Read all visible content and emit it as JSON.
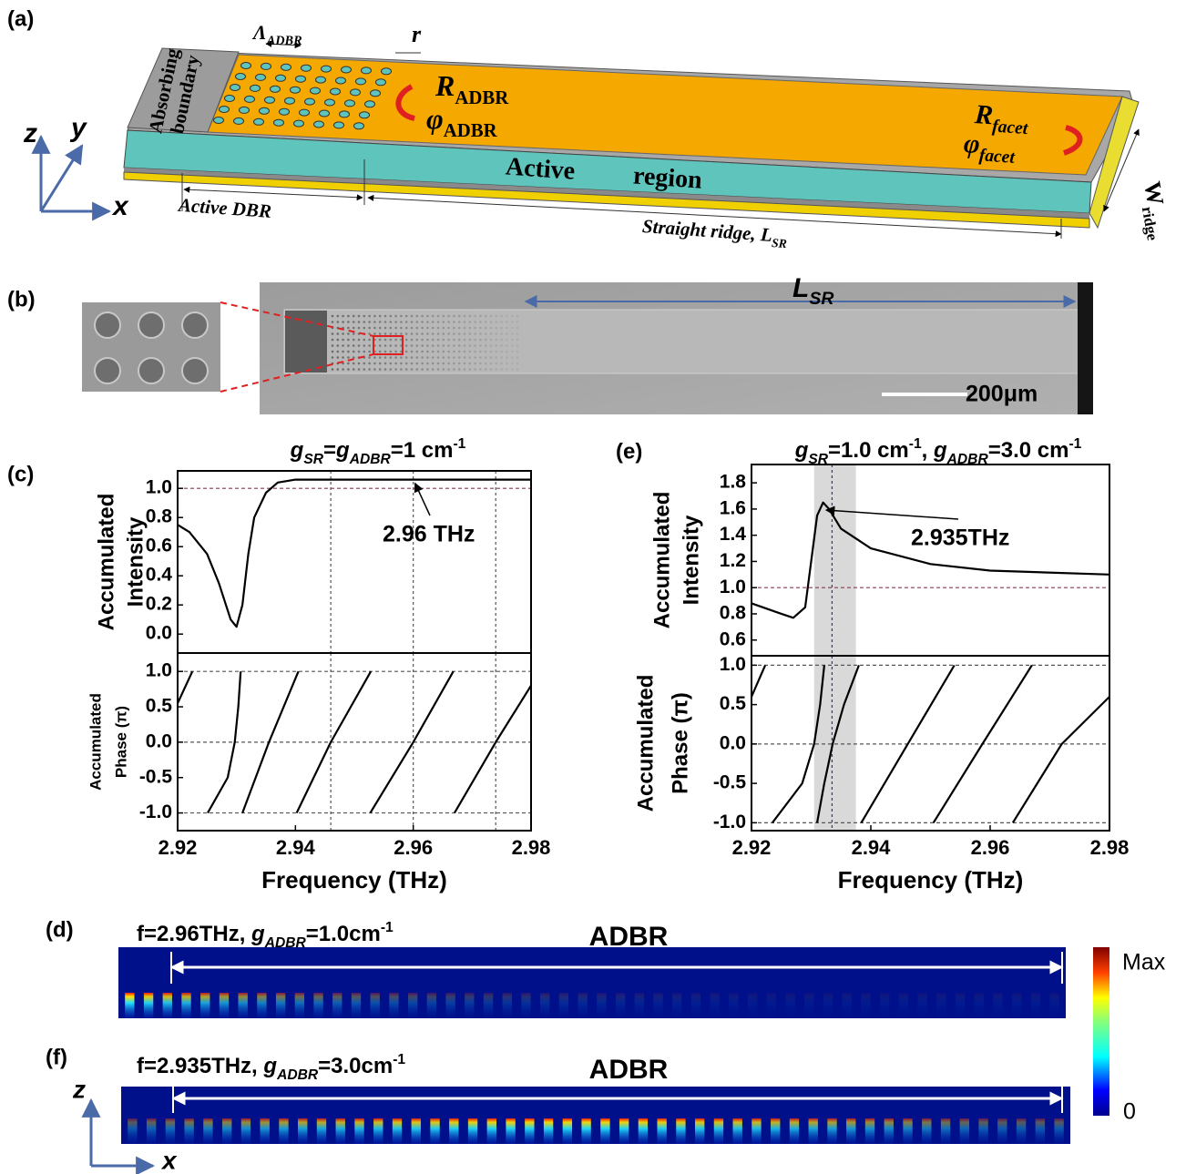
{
  "panel_labels": [
    "(a)",
    "(b)",
    "(c)",
    "(d)",
    "(e)",
    "(f)"
  ],
  "panel_a": {
    "absorbing_boundary": [
      "Absorbing",
      "boundary"
    ],
    "period": [
      {
        "text": "Λ",
        "italic": true
      },
      {
        "text": "ADBR",
        "sub": true,
        "italic": true
      }
    ],
    "radius": [
      {
        "text": "r",
        "italic": true
      }
    ],
    "r_adbr": [
      {
        "text": "R",
        "italic": true
      },
      {
        "text": "ADBR",
        "sub": true
      }
    ],
    "phi_adbr": [
      {
        "text": "φ",
        "italic": true
      },
      {
        "text": "ADBR",
        "sub": true
      }
    ],
    "r_facet": [
      {
        "text": "R",
        "italic": true
      },
      {
        "text": "facet",
        "sub": true,
        "italic": true
      }
    ],
    "phi_facet": [
      {
        "text": "φ",
        "italic": true
      },
      {
        "text": "facet",
        "sub": true,
        "italic": true
      }
    ],
    "active_region": [
      "Active",
      "region"
    ],
    "active_dbr": "Active DBR",
    "straight_ridge": [
      {
        "text": "Straight ridge, ",
        "italic": true
      },
      {
        "text": "L",
        "italic": true
      },
      {
        "text": "SR",
        "sub": true,
        "italic": true
      }
    ],
    "w_ridge": [
      {
        "text": "W"
      },
      {
        "text": "ridge",
        "sub": true
      }
    ],
    "axes": [
      "z",
      "y",
      "x"
    ]
  },
  "panel_b": {
    "length": [
      {
        "text": "L",
        "italic": true
      },
      {
        "text": "SR",
        "sub": true,
        "italic": true
      }
    ],
    "scale_bar": "200μm"
  },
  "chart_data": [
    {
      "type": "line",
      "title": [
        {
          "text": "g",
          "italic": true
        },
        {
          "text": "SR",
          "sub": true,
          "italic": true
        },
        {
          "text": "="
        },
        {
          "text": "g",
          "italic": true
        },
        {
          "text": "ADBR",
          "sub": true,
          "italic": true
        },
        {
          "text": "=1 cm"
        },
        {
          "text": "-1",
          "sup": true
        }
      ],
      "ylabel": [
        "Accumulated",
        "Intensity"
      ],
      "xlim": [
        2.92,
        2.98
      ],
      "ylim": [
        -0.13,
        1.12
      ],
      "yticks": [
        {
          "value": 0,
          "label": "0.0"
        },
        0.2,
        0.4,
        0.6,
        0.8,
        {
          "value": 1,
          "label": "1.0"
        }
      ],
      "series": [
        {
          "color": "#000000",
          "x": [
            2.92,
            2.922,
            2.925,
            2.927,
            2.929,
            2.93,
            2.931,
            2.932,
            2.933,
            2.935,
            2.937,
            2.94,
            2.95,
            2.98
          ],
          "values": [
            0.75,
            0.7,
            0.55,
            0.35,
            0.1,
            0.05,
            0.2,
            0.55,
            0.8,
            0.97,
            1.04,
            1.06,
            1.06,
            1.06
          ]
        }
      ],
      "hlines": [
        1.0
      ],
      "hline_color": "#8b3a4a",
      "vlines": [
        2.946,
        2.96,
        2.974
      ],
      "vline_color": "#555555",
      "annotation": {
        "text": "2.96 THz",
        "x": 2.96,
        "y": 1.06
      }
    },
    {
      "type": "line",
      "ylabel": [
        "Accumulated",
        "Phase (π)"
      ],
      "xlabel": "Frequency (THz)",
      "xlim": [
        2.92,
        2.98
      ],
      "ylim": [
        -1.25,
        1.26
      ],
      "xticks": [
        2.92,
        2.94,
        2.96,
        2.98
      ],
      "yticks": [
        {
          "value": -1,
          "label": "-1.0"
        },
        -0.5,
        {
          "value": 0,
          "label": "0.0"
        },
        0.5,
        {
          "value": 1,
          "label": "1.0"
        }
      ],
      "series": [
        {
          "color": "#000000",
          "x": [
            2.92,
            2.9225
          ],
          "values": [
            0.55,
            1.0
          ]
        },
        {
          "color": "#000000",
          "x": [
            2.9251,
            2.9285,
            2.9297,
            2.9303,
            2.9307
          ],
          "values": [
            -1.0,
            -0.5,
            0.0,
            0.5,
            1.0
          ]
        },
        {
          "color": "#000000",
          "x": [
            2.931,
            2.9355,
            2.9405
          ],
          "values": [
            -1.0,
            0.0,
            1.0
          ]
        },
        {
          "color": "#000000",
          "x": [
            2.9402,
            2.946,
            2.9528
          ],
          "values": [
            -1.0,
            0.0,
            1.0
          ]
        },
        {
          "color": "#000000",
          "x": [
            2.9527,
            2.96,
            2.9668
          ],
          "values": [
            -1.0,
            0.0,
            1.0
          ]
        },
        {
          "color": "#000000",
          "x": [
            2.967,
            2.974,
            2.98
          ],
          "values": [
            -1.0,
            0.0,
            0.8
          ]
        }
      ],
      "hlines": [
        -1.0,
        0.0,
        1.0
      ],
      "hline_color": "#555555",
      "vlines": [
        2.946,
        2.96,
        2.974
      ],
      "vline_color": "#555555"
    },
    {
      "type": "line",
      "title": [
        {
          "text": "g",
          "italic": true
        },
        {
          "text": "SR",
          "sub": true,
          "italic": true
        },
        {
          "text": "=1.0 cm"
        },
        {
          "text": "-1",
          "sup": true
        },
        {
          "text": ", "
        },
        {
          "text": "g",
          "italic": true
        },
        {
          "text": "ADBR",
          "sub": true,
          "italic": true
        },
        {
          "text": "=3.0 cm"
        },
        {
          "text": "-1",
          "sup": true
        }
      ],
      "ylabel": [
        "Accumulated",
        "Intensity"
      ],
      "xlim": [
        2.92,
        2.98
      ],
      "ylim": [
        0.48,
        1.94
      ],
      "yticks": [
        0.6,
        0.8,
        {
          "value": 1,
          "label": "1.0"
        },
        1.2,
        1.4,
        1.6,
        1.8
      ],
      "series": [
        {
          "color": "#000000",
          "x": [
            2.92,
            2.925,
            2.927,
            2.929,
            2.93,
            2.931,
            2.932,
            2.933,
            2.935,
            2.94,
            2.95,
            2.96,
            2.98
          ],
          "values": [
            0.88,
            0.8,
            0.77,
            0.85,
            1.2,
            1.55,
            1.65,
            1.6,
            1.45,
            1.3,
            1.18,
            1.13,
            1.1
          ]
        }
      ],
      "hlines": [
        1.0
      ],
      "hline_color": "#8b3a4a",
      "band": [
        2.9305,
        2.9375
      ],
      "band_color": "#d9d9d9",
      "vlines": [
        2.9335
      ],
      "vline_color": "#2a3a9a",
      "annotation": {
        "text": "2.935THz",
        "x": 2.9322,
        "y": 1.62
      }
    },
    {
      "type": "line",
      "ylabel": [
        "Accumulated",
        "Phase (π)"
      ],
      "xlabel": "Frequency (THz)",
      "xlim": [
        2.92,
        2.98
      ],
      "ylim": [
        -1.1,
        1.12
      ],
      "xticks": [
        2.92,
        2.94,
        2.96,
        2.98
      ],
      "yticks": [
        {
          "value": -1,
          "label": "-1.0"
        },
        -0.5,
        {
          "value": 0,
          "label": "0.0"
        },
        0.5,
        {
          "value": 1,
          "label": "1.0"
        }
      ],
      "series": [
        {
          "color": "#000000",
          "x": [
            2.92,
            2.9223
          ],
          "values": [
            0.6,
            1.0
          ]
        },
        {
          "color": "#000000",
          "x": [
            2.9235,
            2.9285,
            2.9305,
            2.9315,
            2.9322
          ],
          "values": [
            -1.0,
            -0.5,
            0.0,
            0.5,
            1.0
          ]
        },
        {
          "color": "#000000",
          "x": [
            2.931,
            2.9322,
            2.9336,
            2.9355,
            2.938
          ],
          "values": [
            -1.0,
            -0.5,
            0.0,
            0.5,
            1.0
          ]
        },
        {
          "color": "#000000",
          "x": [
            2.9384,
            2.9462,
            2.954
          ],
          "values": [
            -1.0,
            0.0,
            1.0
          ]
        },
        {
          "color": "#000000",
          "x": [
            2.9505,
            2.9587,
            2.967
          ],
          "values": [
            -1.0,
            0.0,
            1.0
          ]
        },
        {
          "color": "#000000",
          "x": [
            2.9638,
            2.972,
            2.98
          ],
          "values": [
            -1.0,
            0.0,
            0.6
          ]
        }
      ],
      "hlines": [
        -1.0,
        0.0,
        1.0
      ],
      "hline_color": "#555555",
      "band": [
        2.9305,
        2.9375
      ],
      "band_color": "#d9d9d9",
      "vlines": [
        2.9335
      ],
      "vline_color": "#2a3a9a"
    }
  ],
  "panel_d": {
    "label": [
      {
        "text": "f=2.96THz, "
      },
      {
        "text": "g",
        "italic": true
      },
      {
        "text": "ADBR",
        "sub": true,
        "italic": true
      },
      {
        "text": "=1.0cm"
      },
      {
        "text": "-1",
        "sup": true
      }
    ],
    "region": "ADBR"
  },
  "panel_f": {
    "label": [
      {
        "text": "f=2.935THz, "
      },
      {
        "text": "g",
        "italic": true
      },
      {
        "text": "ADBR",
        "sub": true,
        "italic": true
      },
      {
        "text": "=3.0cm"
      },
      {
        "text": "-1",
        "sup": true
      }
    ],
    "region": "ADBR"
  },
  "colorbar": {
    "max": "Max",
    "min": "0"
  },
  "axes_df": [
    "z",
    "x"
  ]
}
